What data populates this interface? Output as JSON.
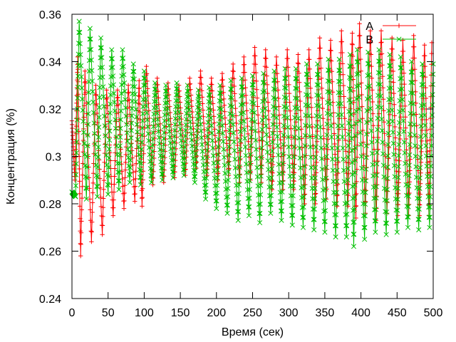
{
  "chart_data": {
    "type": "line",
    "title": "",
    "xlabel": "Время (сек)",
    "ylabel": "Концентрация (%)",
    "xlim": [
      0,
      500
    ],
    "ylim": [
      0.24,
      0.36
    ],
    "x_ticks": [
      0,
      50,
      100,
      150,
      200,
      250,
      300,
      350,
      400,
      450,
      500
    ],
    "y_ticks": [
      0.24,
      0.26,
      0.28,
      0.3,
      0.32,
      0.34,
      0.36
    ],
    "x_tick_labels": [
      "0",
      "50",
      "100",
      "150",
      "200",
      "250",
      "300",
      "350",
      "400",
      "450",
      "500"
    ],
    "y_tick_labels": [
      "0.24",
      "0.26",
      "0.28",
      "0.3",
      "0.32",
      "0.34",
      "0.36"
    ],
    "grid": false,
    "legend_position": "top-right",
    "series": [
      {
        "name": "A",
        "color": "#ff0000",
        "marker": "plus",
        "peaks": [
          [
            0,
            0.315
          ],
          [
            8,
            0.342
          ],
          [
            18,
            0.336
          ],
          [
            33,
            0.33
          ],
          [
            48,
            0.328
          ],
          [
            63,
            0.328
          ],
          [
            78,
            0.33
          ],
          [
            93,
            0.332
          ],
          [
            103,
            0.338
          ],
          [
            118,
            0.333
          ],
          [
            133,
            0.331
          ],
          [
            148,
            0.33
          ],
          [
            163,
            0.333
          ],
          [
            178,
            0.336
          ],
          [
            193,
            0.333
          ],
          [
            208,
            0.335
          ],
          [
            223,
            0.339
          ],
          [
            238,
            0.342
          ],
          [
            253,
            0.346
          ],
          [
            268,
            0.345
          ],
          [
            283,
            0.342
          ],
          [
            298,
            0.345
          ],
          [
            313,
            0.343
          ],
          [
            328,
            0.345
          ],
          [
            343,
            0.35
          ],
          [
            358,
            0.349
          ],
          [
            373,
            0.353
          ],
          [
            388,
            0.352
          ],
          [
            398,
            0.356
          ],
          [
            413,
            0.353
          ],
          [
            428,
            0.353
          ],
          [
            443,
            0.35
          ],
          [
            458,
            0.349
          ],
          [
            473,
            0.351
          ],
          [
            488,
            0.347
          ],
          [
            498,
            0.348
          ]
        ],
        "troughs": [
          [
            4,
            0.29
          ],
          [
            12,
            0.258
          ],
          [
            27,
            0.264
          ],
          [
            42,
            0.267
          ],
          [
            57,
            0.275
          ],
          [
            72,
            0.278
          ],
          [
            87,
            0.281
          ],
          [
            97,
            0.279
          ],
          [
            112,
            0.288
          ],
          [
            127,
            0.289
          ],
          [
            142,
            0.291
          ],
          [
            157,
            0.292
          ],
          [
            172,
            0.295
          ],
          [
            187,
            0.292
          ],
          [
            202,
            0.29
          ],
          [
            217,
            0.292
          ],
          [
            232,
            0.289
          ],
          [
            247,
            0.29
          ],
          [
            262,
            0.289
          ],
          [
            277,
            0.286
          ],
          [
            292,
            0.286
          ],
          [
            307,
            0.286
          ],
          [
            322,
            0.28
          ],
          [
            337,
            0.28
          ],
          [
            352,
            0.282
          ],
          [
            367,
            0.279
          ],
          [
            382,
            0.279
          ],
          [
            393,
            0.274
          ],
          [
            406,
            0.276
          ],
          [
            421,
            0.273
          ],
          [
            436,
            0.276
          ],
          [
            451,
            0.275
          ],
          [
            466,
            0.275
          ],
          [
            481,
            0.275
          ],
          [
            494,
            0.275
          ]
        ]
      },
      {
        "name": "B",
        "color": "#00c000",
        "marker": "cross",
        "peaks": [
          [
            0,
            0.285
          ],
          [
            10,
            0.357
          ],
          [
            25,
            0.354
          ],
          [
            40,
            0.35
          ],
          [
            55,
            0.345
          ],
          [
            70,
            0.345
          ],
          [
            85,
            0.339
          ],
          [
            100,
            0.336
          ],
          [
            115,
            0.331
          ],
          [
            130,
            0.33
          ],
          [
            145,
            0.331
          ],
          [
            160,
            0.33
          ],
          [
            175,
            0.328
          ],
          [
            190,
            0.329
          ],
          [
            205,
            0.33
          ],
          [
            220,
            0.332
          ],
          [
            235,
            0.333
          ],
          [
            250,
            0.334
          ],
          [
            265,
            0.335
          ],
          [
            280,
            0.336
          ],
          [
            295,
            0.337
          ],
          [
            310,
            0.337
          ],
          [
            325,
            0.339
          ],
          [
            340,
            0.339
          ],
          [
            355,
            0.341
          ],
          [
            370,
            0.341
          ],
          [
            385,
            0.343
          ],
          [
            395,
            0.345
          ],
          [
            410,
            0.344
          ],
          [
            425,
            0.345
          ],
          [
            440,
            0.343
          ],
          [
            455,
            0.342
          ],
          [
            470,
            0.34
          ],
          [
            485,
            0.339
          ],
          [
            500,
            0.339
          ]
        ],
        "troughs": [
          [
            5,
            0.283
          ],
          [
            20,
            0.282
          ],
          [
            35,
            0.283
          ],
          [
            50,
            0.284
          ],
          [
            65,
            0.286
          ],
          [
            80,
            0.289
          ],
          [
            95,
            0.288
          ],
          [
            110,
            0.289
          ],
          [
            125,
            0.29
          ],
          [
            140,
            0.291
          ],
          [
            155,
            0.292
          ],
          [
            170,
            0.289
          ],
          [
            185,
            0.282
          ],
          [
            200,
            0.278
          ],
          [
            215,
            0.276
          ],
          [
            230,
            0.273
          ],
          [
            245,
            0.275
          ],
          [
            260,
            0.272
          ],
          [
            275,
            0.276
          ],
          [
            290,
            0.273
          ],
          [
            305,
            0.271
          ],
          [
            320,
            0.27
          ],
          [
            335,
            0.269
          ],
          [
            350,
            0.268
          ],
          [
            365,
            0.266
          ],
          [
            380,
            0.266
          ],
          [
            390,
            0.262
          ],
          [
            405,
            0.265
          ],
          [
            420,
            0.268
          ],
          [
            435,
            0.267
          ],
          [
            450,
            0.268
          ],
          [
            465,
            0.27
          ],
          [
            480,
            0.269
          ],
          [
            495,
            0.27
          ]
        ]
      }
    ]
  }
}
